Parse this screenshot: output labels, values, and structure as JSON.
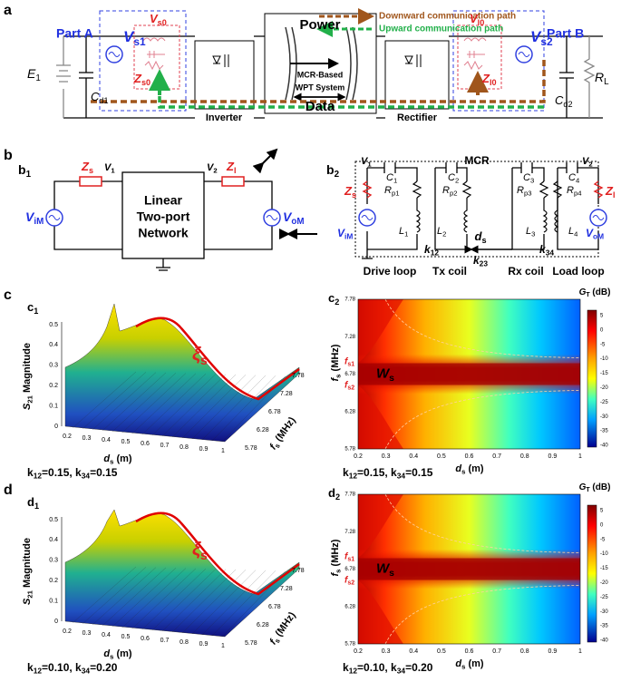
{
  "panel_a": {
    "letter": "a",
    "part_a": "Part A",
    "part_b": "Part B",
    "legend_down": "Downward communication path",
    "legend_up": "Upward communication path",
    "v_s1": [
      "V",
      "s1"
    ],
    "v_s0": [
      "V",
      "s0"
    ],
    "z_s0": [
      "Z",
      "s0"
    ],
    "c_d1": [
      "C",
      "d1"
    ],
    "e_1": [
      "E",
      "1"
    ],
    "inverter": "Inverter",
    "power": "Power",
    "mcr_based": "MCR-Based",
    "wpt_system": "WPT System",
    "data": "Data",
    "rectifier": "Rectifier",
    "v_l0": [
      "V",
      "l0"
    ],
    "z_l0": [
      "Z",
      "l0"
    ],
    "v_s2": [
      "V",
      "s2"
    ],
    "c_d2": [
      "C",
      "d2"
    ],
    "r_l": [
      "R",
      "L"
    ]
  },
  "panel_b": {
    "letter": "b",
    "b1": {
      "label": [
        "b",
        "1"
      ],
      "z_s": [
        "Z",
        "s"
      ],
      "v_1": [
        "V",
        "1"
      ],
      "v_2": [
        "V",
        "2"
      ],
      "z_l": [
        "Z",
        "l"
      ],
      "network": [
        "Linear",
        "Two-port",
        "Network"
      ],
      "v_im": [
        "V",
        "iM"
      ],
      "v_om": [
        "V",
        "oM"
      ]
    },
    "b2": {
      "label": [
        "b",
        "2"
      ],
      "mcr": "MCR",
      "v_1": [
        "V",
        "1"
      ],
      "v_2": [
        "V",
        "2"
      ],
      "c": [
        [
          "C",
          "1"
        ],
        [
          "C",
          "2"
        ],
        [
          "C",
          "3"
        ],
        [
          "C",
          "4"
        ]
      ],
      "r": [
        [
          "R",
          "p1"
        ],
        [
          "R",
          "p2"
        ],
        [
          "R",
          "p3"
        ],
        [
          "R",
          "p4"
        ]
      ],
      "l": [
        [
          "L",
          "1"
        ],
        [
          "L",
          "2"
        ],
        [
          "L",
          "3"
        ],
        [
          "L",
          "4"
        ]
      ],
      "z_s": [
        "Z",
        "s"
      ],
      "z_l": [
        "Z",
        "l"
      ],
      "v_im": [
        "V",
        "iM"
      ],
      "v_om": [
        "V",
        "oM"
      ],
      "d_s": [
        "d",
        "s"
      ],
      "k12": [
        "k",
        "12"
      ],
      "k23": [
        "k",
        "23"
      ],
      "k34": [
        "k",
        "34"
      ],
      "loops": [
        "Drive loop",
        "Tx coil",
        "Rx coil",
        "Load loop"
      ]
    }
  },
  "panels": [
    {
      "letter": "c",
      "left": {
        "label": [
          "c",
          "1"
        ],
        "zticks": [
          "0",
          "0.1",
          "0.2",
          "0.3",
          "0.4",
          "0.5"
        ],
        "zlabel": [
          "S",
          "21",
          " Magnitude"
        ],
        "xticks": [
          "0.2",
          "0.3",
          "0.4",
          "0.5",
          "0.6",
          "0.7",
          "0.8",
          "0.9",
          "1"
        ],
        "xlabel": [
          "d",
          "s",
          " (m)"
        ],
        "fticks": [
          "5.78",
          "6.28",
          "6.78",
          "7.28",
          "7.78"
        ],
        "flabel": [
          "f",
          "s",
          " (MHz)"
        ],
        "ridge": [
          "ξ",
          "s"
        ],
        "caption": [
          "k",
          "12",
          "=0.15, k",
          "34",
          "=0.15"
        ]
      },
      "right": {
        "label": [
          "c",
          "2"
        ],
        "cbar_title": [
          "G",
          "T",
          " (dB)"
        ],
        "cbar_ticks": [
          "5",
          "0",
          "-5",
          "-10",
          "-15",
          "-20",
          "-25",
          "-30",
          "-35",
          "-40"
        ],
        "yticks": [
          "5.78",
          "6.28",
          "6.78",
          "7.28",
          "7.78"
        ],
        "ylabel": [
          "f",
          "s",
          " (MHz)"
        ],
        "xticks": [
          "0.2",
          "0.3",
          "0.4",
          "0.5",
          "0.6",
          "0.7",
          "0.8",
          "0.9",
          "1"
        ],
        "xlabel": [
          "d",
          "s",
          " (m)"
        ],
        "fs1": [
          "f",
          "s1"
        ],
        "fs2": [
          "f",
          "s2"
        ],
        "window": [
          "W",
          "s"
        ],
        "caption": [
          "k",
          "12",
          "=0.15, k",
          "34",
          "=0.15"
        ]
      }
    },
    {
      "letter": "d",
      "left": {
        "label": [
          "d",
          "1"
        ],
        "zticks": [
          "0",
          "0.1",
          "0.2",
          "0.3",
          "0.4",
          "0.5"
        ],
        "zlabel": [
          "S",
          "21",
          " Magnitude"
        ],
        "xticks": [
          "0.2",
          "0.3",
          "0.4",
          "0.5",
          "0.6",
          "0.7",
          "0.8",
          "0.9",
          "1"
        ],
        "xlabel": [
          "d",
          "s",
          " (m)"
        ],
        "fticks": [
          "5.78",
          "6.28",
          "6.78",
          "7.28",
          "7.78"
        ],
        "flabel": [
          "f",
          "s",
          " (MHz)"
        ],
        "ridge": [
          "ξ",
          "s"
        ],
        "caption": [
          "k",
          "12",
          "=0.10, k",
          "34",
          "=0.20"
        ]
      },
      "right": {
        "label": [
          "d",
          "2"
        ],
        "cbar_title": [
          "G",
          "T",
          " (dB)"
        ],
        "cbar_ticks": [
          "5",
          "0",
          "-5",
          "-10",
          "-15",
          "-20",
          "-25",
          "-30",
          "-35",
          "-40"
        ],
        "yticks": [
          "5.78",
          "6.28",
          "6.78",
          "7.28",
          "7.78"
        ],
        "ylabel": [
          "f",
          "s",
          " (MHz)"
        ],
        "xticks": [
          "0.2",
          "0.3",
          "0.4",
          "0.5",
          "0.6",
          "0.7",
          "0.8",
          "0.9",
          "1"
        ],
        "xlabel": [
          "d",
          "s",
          " (m)"
        ],
        "fs1": [
          "f",
          "s1"
        ],
        "fs2": [
          "f",
          "s2"
        ],
        "window": [
          "W",
          "s"
        ],
        "caption": [
          "k",
          "12",
          "=0.10, k",
          "34",
          "=0.20"
        ]
      }
    }
  ]
}
